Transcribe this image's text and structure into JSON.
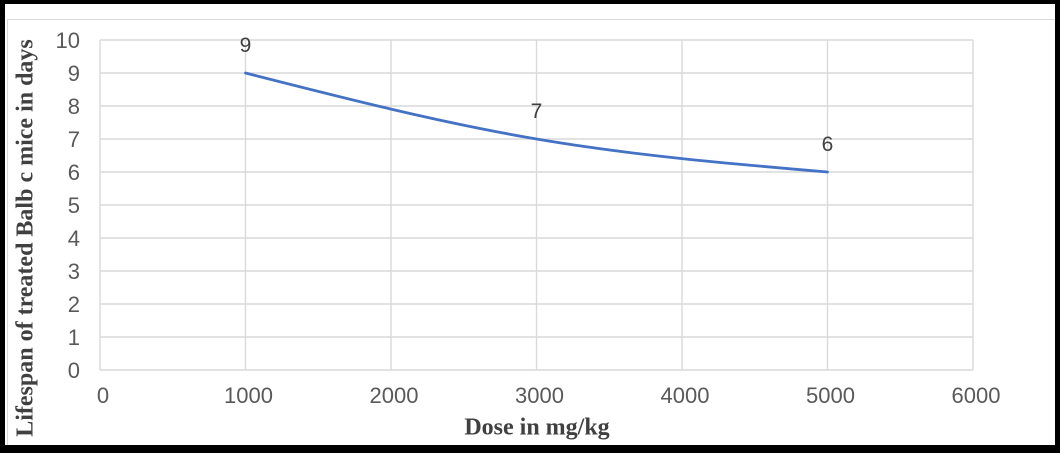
{
  "chart_data": {
    "type": "line",
    "title": "",
    "xlabel": "Dose in mg/kg",
    "ylabel": "Lifespan of treated Balb c mice in days",
    "x": [
      1000,
      3000,
      5000
    ],
    "y": [
      9,
      7,
      6
    ],
    "data_labels": [
      "9",
      "7",
      "6"
    ],
    "xlim": [
      0,
      6000
    ],
    "ylim": [
      0,
      10
    ],
    "xticks": [
      0,
      1000,
      2000,
      3000,
      4000,
      5000,
      6000
    ],
    "yticks": [
      0,
      1,
      2,
      3,
      4,
      5,
      6,
      7,
      8,
      9,
      10
    ],
    "grid": true,
    "smooth": true,
    "legend": "none",
    "colors": {
      "line": "#4472C4",
      "grid": "#D9D9D9",
      "tick_label": "#595959",
      "data_label": "#404040",
      "axis_title": "#404040",
      "background": "#FFFFFF",
      "outer_border": "#000000"
    }
  }
}
